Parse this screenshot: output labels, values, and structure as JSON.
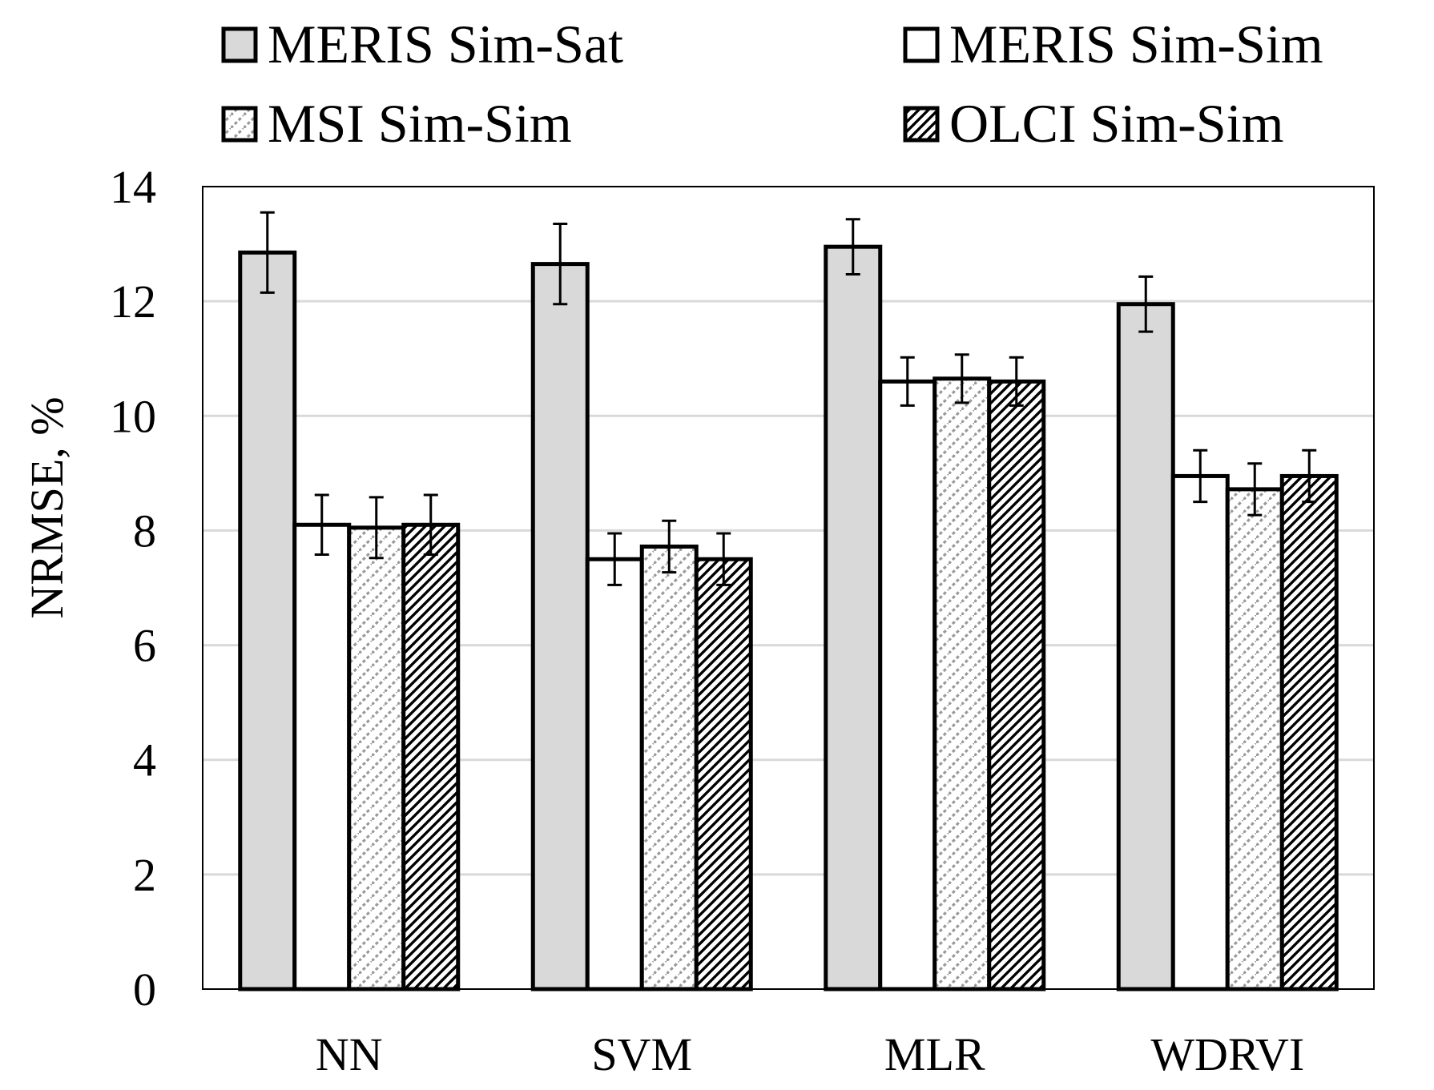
{
  "chart_data": {
    "type": "bar",
    "title": "",
    "xlabel": "",
    "ylabel": "NRMSE, %",
    "ylim": [
      0,
      14
    ],
    "yticks": [
      0,
      2,
      4,
      6,
      8,
      10,
      12,
      14
    ],
    "grid": true,
    "legend_position": "top",
    "categories": [
      "NN",
      "SVM",
      "MLR",
      "WDRVI"
    ],
    "series": [
      {
        "name": "MERIS Sim-Sat",
        "pattern": "solid-gray",
        "fill": "#d9d9d9",
        "values": [
          12.85,
          12.65,
          12.95,
          11.95
        ],
        "errors": [
          0.7,
          0.7,
          0.48,
          0.48
        ]
      },
      {
        "name": "MERIS Sim-Sim",
        "pattern": "solid-white",
        "fill": "#ffffff",
        "values": [
          8.1,
          7.5,
          10.6,
          8.95
        ],
        "errors": [
          0.52,
          0.45,
          0.42,
          0.45
        ]
      },
      {
        "name": "MSI Sim-Sim",
        "pattern": "light-diagonal",
        "fill": "#ffffff",
        "values": [
          8.05,
          7.72,
          10.65,
          8.72
        ],
        "errors": [
          0.53,
          0.45,
          0.42,
          0.45
        ]
      },
      {
        "name": "OLCI Sim-Sim",
        "pattern": "dark-diagonal",
        "fill": "#ffffff",
        "values": [
          8.1,
          7.5,
          10.6,
          8.95
        ],
        "errors": [
          0.52,
          0.45,
          0.42,
          0.45
        ]
      }
    ]
  }
}
